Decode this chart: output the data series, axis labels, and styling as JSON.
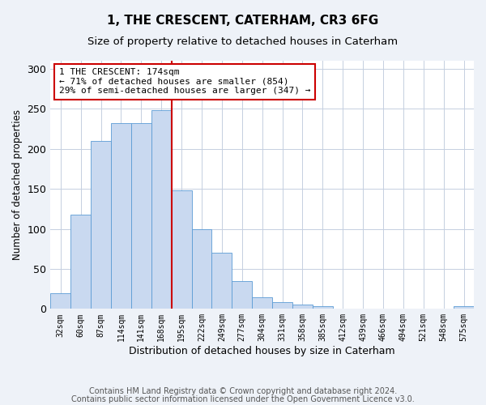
{
  "title": "1, THE CRESCENT, CATERHAM, CR3 6FG",
  "subtitle": "Size of property relative to detached houses in Caterham",
  "xlabel": "Distribution of detached houses by size in Caterham",
  "ylabel": "Number of detached properties",
  "categories": [
    "32sqm",
    "60sqm",
    "87sqm",
    "114sqm",
    "141sqm",
    "168sqm",
    "195sqm",
    "222sqm",
    "249sqm",
    "277sqm",
    "304sqm",
    "331sqm",
    "358sqm",
    "385sqm",
    "412sqm",
    "439sqm",
    "466sqm",
    "494sqm",
    "521sqm",
    "548sqm",
    "575sqm"
  ],
  "values": [
    20,
    118,
    210,
    232,
    232,
    248,
    148,
    100,
    70,
    35,
    14,
    8,
    5,
    3,
    0,
    0,
    0,
    0,
    0,
    0,
    3
  ],
  "bar_color": "#c9d9f0",
  "bar_edgecolor": "#5b9bd5",
  "property_line_x": 5.5,
  "property_line_color": "#cc0000",
  "annotation_text": "1 THE CRESCENT: 174sqm\n← 71% of detached houses are smaller (854)\n29% of semi-detached houses are larger (347) →",
  "annotation_box_color": "#cc0000",
  "ylim": [
    0,
    310
  ],
  "yticks": [
    0,
    50,
    100,
    150,
    200,
    250,
    300
  ],
  "footer_line1": "Contains HM Land Registry data © Crown copyright and database right 2024.",
  "footer_line2": "Contains public sector information licensed under the Open Government Licence v3.0.",
  "background_color": "#eef2f8",
  "plot_background_color": "#ffffff",
  "title_fontsize": 11,
  "subtitle_fontsize": 9.5,
  "xlabel_fontsize": 9,
  "ylabel_fontsize": 8.5,
  "tick_fontsize": 7,
  "footer_fontsize": 7
}
